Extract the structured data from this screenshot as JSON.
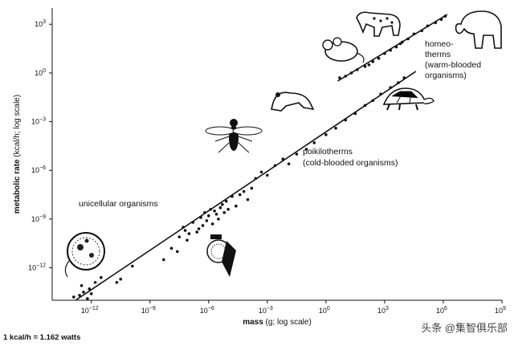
{
  "chart_data": {
    "type": "scatter",
    "xscale": "log",
    "yscale": "log",
    "xlim_exp": [
      -14,
      9
    ],
    "ylim_exp": [
      -14,
      4
    ],
    "x_tick_exps": [
      -12,
      -9,
      -6,
      -3,
      0,
      3,
      6,
      9
    ],
    "y_tick_exps": [
      -12,
      -9,
      -6,
      -3,
      0,
      3
    ],
    "xlabel_bold": "mass",
    "xlabel_rest": " (g; log scale)",
    "ylabel_bold": "metabolic rate",
    "ylabel_rest": " (kcal/h; log scale)",
    "footnote": "1 kcal/h = 1.162 watts",
    "annotations": {
      "unicellular": "unicellular organisms",
      "poikilo_1": "poikilotherms",
      "poikilo_2": "(cold-blooded organisms)",
      "homeo_1": "homeo-",
      "homeo_2": "therms",
      "homeo_3": "(warm-blooded",
      "homeo_4": "organisms)"
    },
    "series": [
      {
        "name": "unicellular organisms",
        "points": [
          [
            -12.6,
            -13.7
          ],
          [
            -12.4,
            -13.5
          ],
          [
            -12.1,
            -13.3
          ],
          [
            -12.9,
            -13.8
          ],
          [
            -11.8,
            -12.9
          ],
          [
            -12.5,
            -13.1
          ],
          [
            -12.2,
            -13.9
          ],
          [
            -11.5,
            -12.6
          ],
          [
            -10.7,
            -12.9
          ],
          [
            -10.5,
            -12.7
          ],
          [
            -9.9,
            -11.9
          ],
          [
            -12.0,
            -13.6
          ]
        ]
      },
      {
        "name": "poikilotherms",
        "points": [
          [
            -7.5,
            -10.1
          ],
          [
            -7.2,
            -9.7
          ],
          [
            -7.3,
            -9.5
          ],
          [
            -7.0,
            -9.9
          ],
          [
            -6.8,
            -9.2
          ],
          [
            -6.6,
            -9.8
          ],
          [
            -6.5,
            -9.6
          ],
          [
            -6.4,
            -8.9
          ],
          [
            -6.3,
            -9.4
          ],
          [
            -6.2,
            -8.6
          ],
          [
            -6.1,
            -9.1
          ],
          [
            -6.0,
            -8.8
          ],
          [
            -5.9,
            -8.4
          ],
          [
            -5.8,
            -9.3
          ],
          [
            -5.7,
            -8.5
          ],
          [
            -5.6,
            -8.7
          ],
          [
            -5.5,
            -9.0
          ],
          [
            -5.4,
            -8.3
          ],
          [
            -5.3,
            -8.1
          ],
          [
            -5.2,
            -8.6
          ],
          [
            -5.1,
            -7.9
          ],
          [
            -5.0,
            -8.4
          ],
          [
            -4.8,
            -7.6
          ],
          [
            -4.6,
            -8.2
          ],
          [
            -4.4,
            -7.5
          ],
          [
            -4.2,
            -7.3
          ],
          [
            -4.0,
            -7.8
          ],
          [
            -3.8,
            -7.1
          ],
          [
            -5.3,
            -10.4
          ],
          [
            -5.0,
            -10.7
          ],
          [
            -4.9,
            -11.9
          ],
          [
            -7.1,
            -10.3
          ],
          [
            -7.6,
            -11.0
          ],
          [
            -8.3,
            -11.5
          ],
          [
            -7.9,
            -10.8
          ],
          [
            -3.6,
            -6.5
          ],
          [
            -3.3,
            -6.1
          ],
          [
            -3.0,
            -6.3
          ],
          [
            -2.6,
            -5.7
          ],
          [
            -2.2,
            -5.3
          ],
          [
            -1.9,
            -5.6
          ],
          [
            -1.5,
            -5.0
          ],
          [
            -1.0,
            -4.7
          ],
          [
            -0.6,
            -4.3
          ],
          [
            0.0,
            -3.8
          ],
          [
            0.5,
            -3.4
          ],
          [
            1.0,
            -2.9
          ],
          [
            1.5,
            -2.5
          ],
          [
            2.0,
            -2.0
          ],
          [
            2.4,
            -1.7
          ],
          [
            2.8,
            -1.3
          ],
          [
            3.3,
            -0.9
          ],
          [
            3.7,
            -0.6
          ],
          [
            4.0,
            -0.3
          ]
        ]
      },
      {
        "name": "homeotherms",
        "points": [
          [
            0.7,
            -0.3
          ],
          [
            1.0,
            -0.2
          ],
          [
            1.3,
            0.0
          ],
          [
            1.6,
            0.2
          ],
          [
            2.0,
            0.4
          ],
          [
            2.4,
            0.7
          ],
          [
            2.7,
            0.9
          ],
          [
            3.0,
            1.2
          ],
          [
            3.3,
            1.4
          ],
          [
            3.6,
            1.6
          ],
          [
            3.9,
            1.9
          ],
          [
            4.2,
            2.1
          ],
          [
            4.5,
            2.4
          ],
          [
            4.9,
            2.6
          ],
          [
            5.2,
            2.9
          ],
          [
            5.6,
            3.1
          ],
          [
            5.9,
            3.3
          ],
          [
            6.1,
            3.5
          ],
          [
            2.2,
            0.5
          ],
          [
            3.8,
            1.8
          ]
        ]
      }
    ],
    "fit_lines": [
      {
        "name": "poikilotherms",
        "from": [
          -12.8,
          -14.0
        ],
        "to": [
          4.6,
          0.1
        ]
      },
      {
        "name": "homeotherms",
        "from": [
          0.6,
          -0.5
        ],
        "to": [
          6.2,
          3.6
        ]
      }
    ]
  },
  "watermark": "头条 @集智俱乐部"
}
